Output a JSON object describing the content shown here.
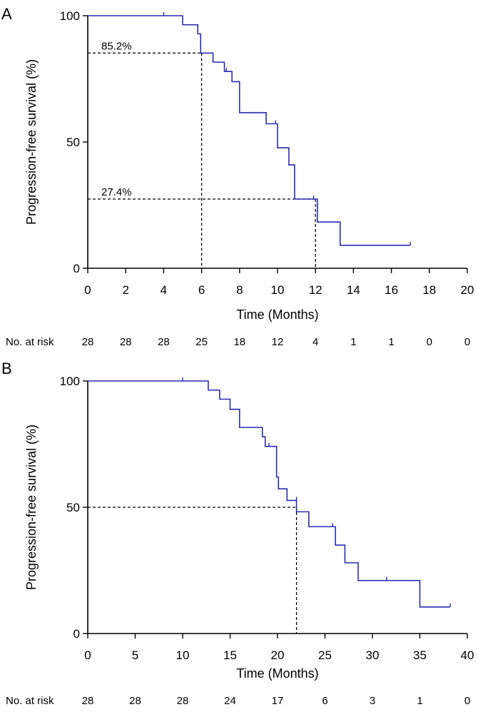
{
  "chart_data": [
    {
      "type": "line",
      "panel": "A",
      "ylabel": "Progression-free survival (%)",
      "xlabel": "Time (Months)",
      "xlim": [
        0,
        20
      ],
      "ylim": [
        0,
        100
      ],
      "xticks": [
        0,
        2,
        4,
        6,
        8,
        10,
        12,
        14,
        16,
        18,
        20
      ],
      "yticks": [
        0,
        50,
        100
      ],
      "series": [
        {
          "name": "PFS",
          "color": "#2b2bb0",
          "steps": [
            [
              0,
              100
            ],
            [
              5.0,
              96.4
            ],
            [
              5.8,
              92.8
            ],
            [
              5.95,
              85.2
            ],
            [
              6.6,
              81.6
            ],
            [
              7.2,
              77.9
            ],
            [
              7.6,
              73.9
            ],
            [
              8.0,
              61.6
            ],
            [
              9.4,
              57.2
            ],
            [
              10.0,
              47.7
            ],
            [
              10.6,
              40.9
            ],
            [
              10.9,
              27.4
            ],
            [
              12.1,
              18.3
            ],
            [
              13.3,
              9.1
            ],
            [
              17.0,
              9.1
            ]
          ],
          "censors": [
            [
              4.0,
              100
            ],
            [
              7.3,
              77.9
            ],
            [
              9.9,
              57.2
            ],
            [
              11.9,
              27.4
            ],
            [
              17.0,
              9.1
            ]
          ]
        }
      ],
      "reference_lines": [
        {
          "x": 6,
          "y": 85.2,
          "label": "85.2%"
        },
        {
          "x": 12,
          "y": 27.4,
          "label": "27.4%"
        }
      ],
      "risk_table": {
        "label": "No. at risk",
        "times": [
          0,
          2,
          4,
          6,
          8,
          10,
          12,
          14,
          16,
          18,
          20
        ],
        "values": [
          "28",
          "28",
          "28",
          "25",
          "18",
          "12",
          "4",
          "1",
          "1",
          "0",
          "0"
        ]
      }
    },
    {
      "type": "line",
      "panel": "B",
      "ylabel": "Progression-free survival (%)",
      "xlabel": "Time (Months)",
      "xlim": [
        0,
        40
      ],
      "ylim": [
        0,
        100
      ],
      "xticks": [
        0,
        5,
        10,
        15,
        20,
        25,
        30,
        35,
        40
      ],
      "yticks": [
        0,
        50,
        100
      ],
      "series": [
        {
          "name": "PFS",
          "color": "#2b2bb0",
          "steps": [
            [
              0,
              100
            ],
            [
              12.7,
              96.4
            ],
            [
              13.9,
              92.8
            ],
            [
              15.0,
              88.8
            ],
            [
              16.0,
              81.6
            ],
            [
              18.4,
              77.9
            ],
            [
              18.7,
              74.1
            ],
            [
              19.9,
              62.0
            ],
            [
              20.1,
              57.3
            ],
            [
              21.0,
              52.7
            ],
            [
              22.0,
              48.2
            ],
            [
              23.3,
              42.3
            ],
            [
              26.1,
              35.0
            ],
            [
              27.1,
              28.0
            ],
            [
              28.5,
              21.0
            ],
            [
              35.0,
              10.5
            ],
            [
              38.2,
              10.5
            ]
          ],
          "censors": [
            [
              10.0,
              100
            ],
            [
              19.1,
              74.1
            ],
            [
              22.0,
              52.7
            ],
            [
              25.8,
              42.3
            ],
            [
              31.5,
              21.0
            ],
            [
              38.2,
              10.5
            ]
          ]
        }
      ],
      "reference_lines": [
        {
          "x": 22,
          "y": 50,
          "label": ""
        }
      ],
      "risk_table": {
        "label": "No. at risk",
        "times": [
          0,
          5,
          10,
          15,
          20,
          25,
          30,
          35,
          40
        ],
        "values": [
          "28",
          "28",
          "28",
          "24",
          "17",
          "6",
          "3",
          "1",
          "0"
        ]
      }
    }
  ]
}
